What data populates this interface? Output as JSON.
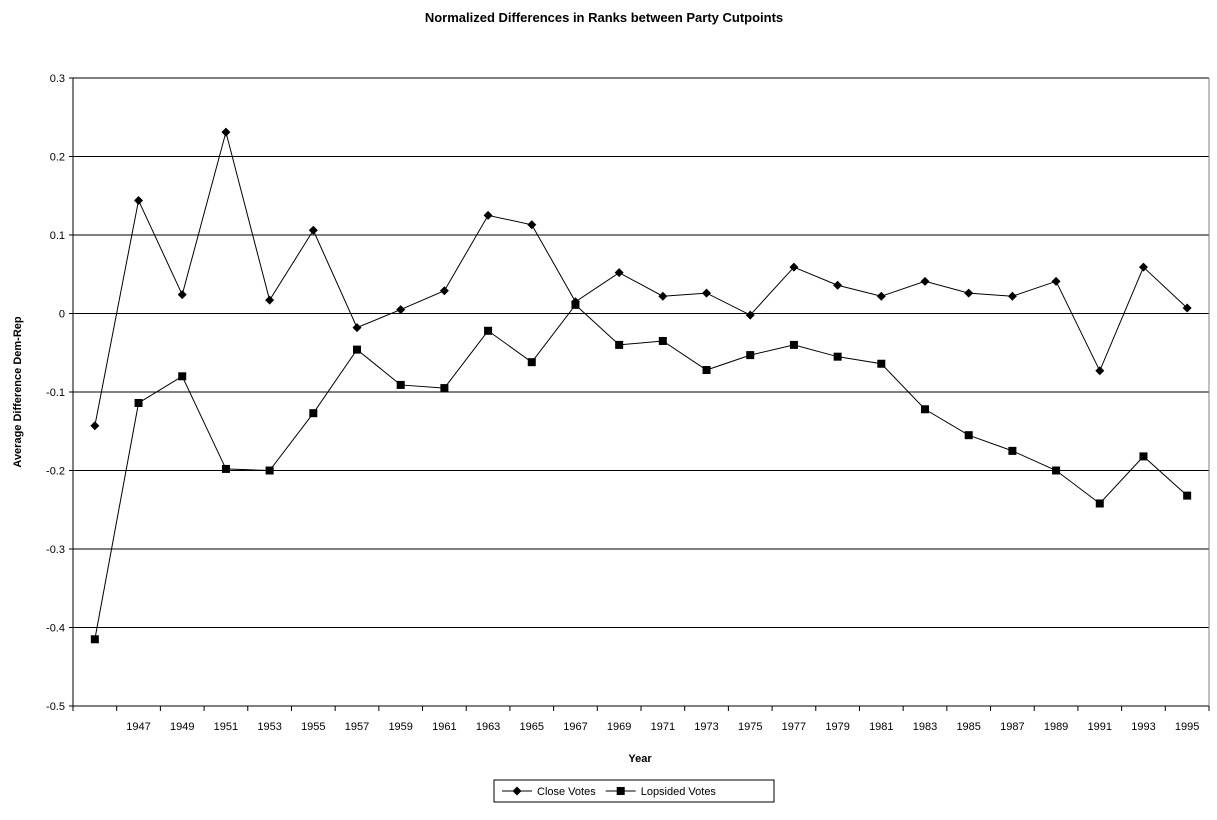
{
  "chart_data": {
    "type": "line",
    "title": "Normalized Differences in Ranks between Party Cutpoints",
    "xlabel": "Year",
    "ylabel": "Average Difference Dem-Rep",
    "categories": [
      "",
      "1947",
      "1949",
      "1951",
      "1953",
      "1955",
      "1957",
      "1959",
      "1961",
      "1963",
      "1965",
      "1967",
      "1969",
      "1971",
      "1973",
      "1975",
      "1977",
      "1979",
      "1981",
      "1983",
      "1985",
      "1987",
      "1989",
      "1991",
      "1993",
      "1995"
    ],
    "ylim": [
      -0.5,
      0.3
    ],
    "yticks": [
      "0.3",
      "0.2",
      "0.1",
      "0",
      "-0.1",
      "-0.2",
      "-0.3",
      "-0.4",
      "-0.5"
    ],
    "ytick_values": [
      0.3,
      0.2,
      0.1,
      0,
      -0.1,
      -0.2,
      -0.3,
      -0.4,
      -0.5
    ],
    "grid": "horizontal",
    "legend_position": "bottom",
    "series": [
      {
        "name": "Close Votes",
        "marker": "diamond",
        "values": [
          -0.143,
          0.144,
          0.024,
          0.231,
          0.017,
          0.106,
          -0.018,
          0.005,
          0.029,
          0.125,
          0.113,
          0.015,
          0.052,
          0.022,
          0.026,
          -0.002,
          0.059,
          0.036,
          0.022,
          0.041,
          0.026,
          0.022,
          0.041,
          -0.073,
          0.059,
          0.007
        ]
      },
      {
        "name": "Lopsided Votes",
        "marker": "square",
        "values": [
          -0.415,
          -0.114,
          -0.08,
          -0.198,
          -0.2,
          -0.127,
          -0.046,
          -0.091,
          -0.095,
          -0.022,
          -0.062,
          0.011,
          -0.04,
          -0.035,
          -0.072,
          -0.053,
          -0.04,
          -0.055,
          -0.064,
          -0.122,
          -0.155,
          -0.175,
          -0.2,
          -0.242,
          -0.182,
          -0.232
        ]
      }
    ]
  },
  "colors": {
    "line": "#000000",
    "grid": "#000000",
    "background": "#ffffff"
  }
}
